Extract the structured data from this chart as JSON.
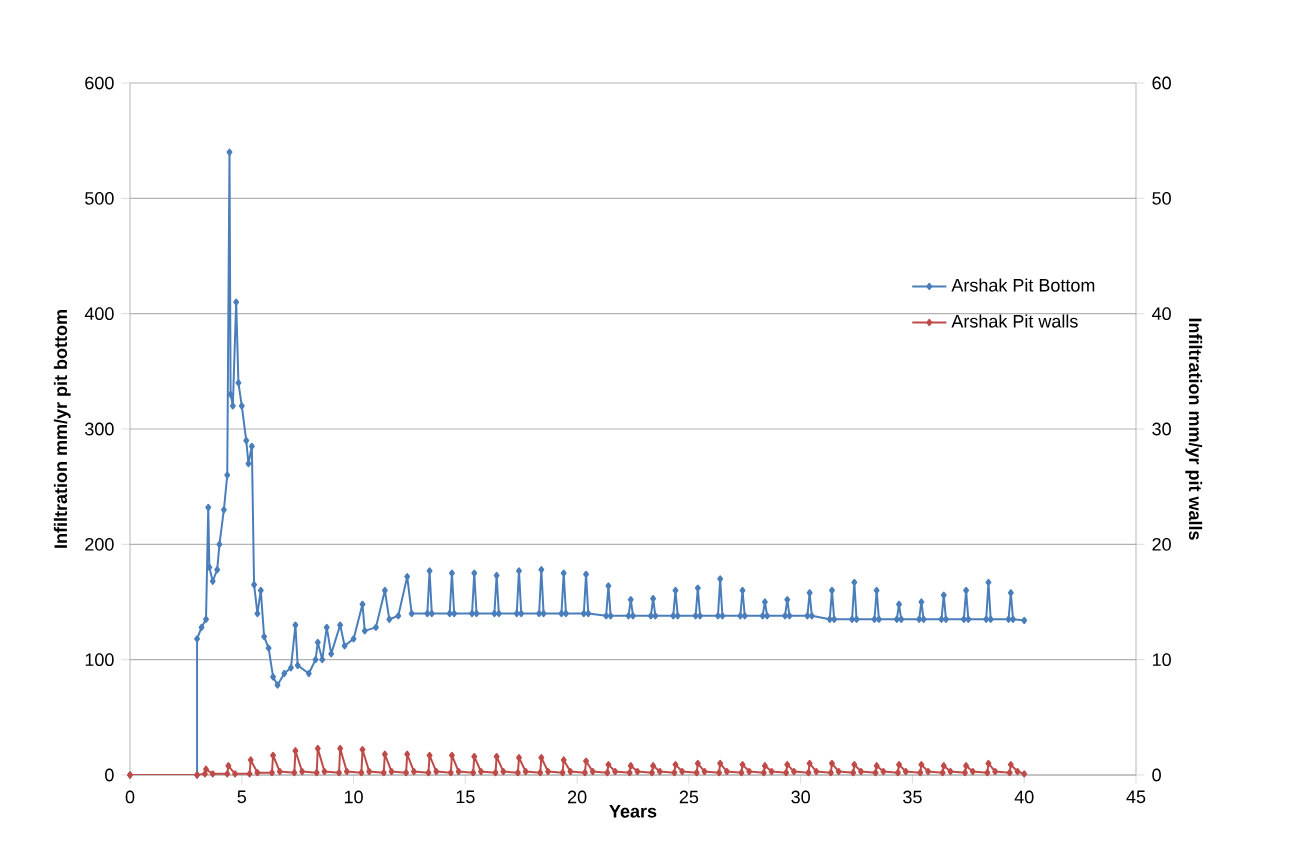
{
  "chart_data": {
    "type": "line",
    "xlabel": "Years",
    "ylabel": "Infiltration mm/yr pit bottom",
    "y2label": "Infiltration mm/yr pit walls",
    "xlim": [
      0,
      45
    ],
    "xticks": [
      0,
      5,
      10,
      15,
      20,
      25,
      30,
      35,
      40,
      45
    ],
    "ylim": [
      0,
      600
    ],
    "yticks": [
      0,
      100,
      200,
      300,
      400,
      500,
      600
    ],
    "y2lim": [
      0,
      60
    ],
    "y2ticks": [
      0,
      10,
      20,
      30,
      40,
      50,
      60
    ],
    "grid": "y",
    "legend": "right",
    "marker": "diamond",
    "line_style": "solid",
    "series": [
      {
        "name": "Arshak Pit Bottom",
        "color": "#4a7ebb",
        "x": [
          0,
          3,
          3,
          3.2,
          3.4,
          3.5,
          3.55,
          3.7,
          3.9,
          4.0,
          4.2,
          4.35,
          4.45,
          4.5,
          4.6,
          4.75,
          4.85,
          5.0,
          5.2,
          5.3,
          5.45,
          5.55,
          5.7,
          5.85,
          6.0,
          6.2,
          6.4,
          6.6,
          6.9,
          7.2,
          7.4,
          7.5,
          8.0,
          8.3,
          8.4,
          8.6,
          8.8,
          9.0,
          9.4,
          9.6,
          10.0,
          10.4,
          10.5,
          11.0,
          11.4,
          11.6,
          12.0,
          12.4,
          12.6,
          13.3,
          13.4,
          13.5,
          14.3,
          14.4,
          14.5,
          15.3,
          15.4,
          15.5,
          16.3,
          16.4,
          16.5,
          17.3,
          17.4,
          17.5,
          18.3,
          18.4,
          18.5,
          19.3,
          19.4,
          19.5,
          20.3,
          20.4,
          20.5,
          21.3,
          21.4,
          21.5,
          22.3,
          22.4,
          22.5,
          23.3,
          23.4,
          23.5,
          24.3,
          24.4,
          24.5,
          25.3,
          25.4,
          25.5,
          26.3,
          26.4,
          26.5,
          27.3,
          27.4,
          27.5,
          28.3,
          28.4,
          28.5,
          29.3,
          29.4,
          29.5,
          30.3,
          30.4,
          30.5,
          31.3,
          31.4,
          31.5,
          32.3,
          32.4,
          32.5,
          33.3,
          33.4,
          33.5,
          34.3,
          34.4,
          34.5,
          35.3,
          35.4,
          35.5,
          36.3,
          36.4,
          36.5,
          37.3,
          37.4,
          37.5,
          38.3,
          38.4,
          38.5,
          39.3,
          39.4,
          39.5,
          40
        ],
        "values": [
          0,
          0,
          118,
          128,
          135,
          232,
          180,
          168,
          178,
          200,
          230,
          260,
          540,
          330,
          320,
          410,
          340,
          320,
          290,
          270,
          285,
          165,
          140,
          160,
          120,
          110,
          85,
          78,
          88,
          93,
          130,
          95,
          88,
          100,
          115,
          100,
          128,
          105,
          130,
          112,
          118,
          148,
          125,
          128,
          160,
          135,
          138,
          172,
          140,
          140,
          177,
          140,
          140,
          175,
          140,
          140,
          175,
          140,
          140,
          173,
          140,
          140,
          177,
          140,
          140,
          178,
          140,
          140,
          175,
          140,
          140,
          174,
          140,
          138,
          164,
          138,
          138,
          152,
          138,
          138,
          153,
          138,
          138,
          160,
          138,
          138,
          162,
          138,
          138,
          170,
          138,
          138,
          160,
          138,
          138,
          150,
          138,
          138,
          152,
          138,
          138,
          158,
          138,
          135,
          160,
          135,
          135,
          167,
          135,
          135,
          160,
          135,
          135,
          148,
          135,
          135,
          150,
          135,
          135,
          156,
          135,
          135,
          160,
          135,
          135,
          167,
          135,
          135,
          158,
          135,
          134
        ]
      },
      {
        "name": "Arshak Pit walls",
        "color": "#be4b48",
        "axis": "y2",
        "x": [
          0,
          3,
          3.35,
          3.4,
          3.7,
          4.35,
          4.4,
          4.7,
          5.35,
          5.4,
          5.7,
          6.35,
          6.4,
          6.7,
          7.35,
          7.4,
          7.7,
          8.35,
          8.4,
          8.7,
          9.35,
          9.4,
          9.7,
          10.35,
          10.4,
          10.7,
          11.35,
          11.4,
          11.7,
          12.35,
          12.4,
          12.7,
          13.35,
          13.4,
          13.7,
          14.35,
          14.4,
          14.7,
          15.35,
          15.4,
          15.7,
          16.35,
          16.4,
          16.7,
          17.35,
          17.4,
          17.7,
          18.35,
          18.4,
          18.7,
          19.35,
          19.4,
          19.7,
          20.35,
          20.4,
          20.7,
          21.35,
          21.4,
          21.7,
          22.35,
          22.4,
          22.7,
          23.35,
          23.4,
          23.7,
          24.35,
          24.4,
          24.7,
          25.35,
          25.4,
          25.7,
          26.35,
          26.4,
          26.7,
          27.35,
          27.4,
          27.7,
          28.35,
          28.4,
          28.7,
          29.35,
          29.4,
          29.7,
          30.35,
          30.4,
          30.7,
          31.35,
          31.4,
          31.7,
          32.35,
          32.4,
          32.7,
          33.35,
          33.4,
          33.7,
          34.35,
          34.4,
          34.7,
          35.35,
          35.4,
          35.7,
          36.35,
          36.4,
          36.7,
          37.35,
          37.4,
          37.7,
          38.35,
          38.4,
          38.7,
          39.35,
          39.4,
          39.7,
          40
        ],
        "values": [
          0,
          0,
          0.1,
          0.5,
          0.1,
          0.1,
          0.8,
          0.1,
          0.1,
          1.3,
          0.2,
          0.2,
          1.7,
          0.3,
          0.2,
          2.1,
          0.3,
          0.2,
          2.3,
          0.3,
          0.2,
          2.3,
          0.3,
          0.2,
          2.2,
          0.3,
          0.2,
          1.8,
          0.3,
          0.2,
          1.8,
          0.3,
          0.2,
          1.7,
          0.3,
          0.2,
          1.7,
          0.3,
          0.2,
          1.6,
          0.3,
          0.2,
          1.6,
          0.3,
          0.2,
          1.5,
          0.3,
          0.2,
          1.5,
          0.3,
          0.2,
          1.3,
          0.3,
          0.2,
          1.2,
          0.3,
          0.2,
          0.9,
          0.3,
          0.2,
          0.8,
          0.3,
          0.2,
          0.8,
          0.3,
          0.2,
          0.9,
          0.3,
          0.2,
          1.0,
          0.3,
          0.2,
          1.0,
          0.3,
          0.2,
          0.9,
          0.3,
          0.2,
          0.8,
          0.3,
          0.2,
          0.9,
          0.3,
          0.2,
          1.0,
          0.3,
          0.2,
          1.0,
          0.3,
          0.2,
          0.9,
          0.3,
          0.2,
          0.8,
          0.3,
          0.2,
          0.9,
          0.3,
          0.2,
          0.9,
          0.3,
          0.2,
          0.8,
          0.3,
          0.2,
          0.8,
          0.3,
          0.2,
          1.0,
          0.3,
          0.2,
          0.9,
          0.3,
          0.1
        ]
      }
    ]
  }
}
